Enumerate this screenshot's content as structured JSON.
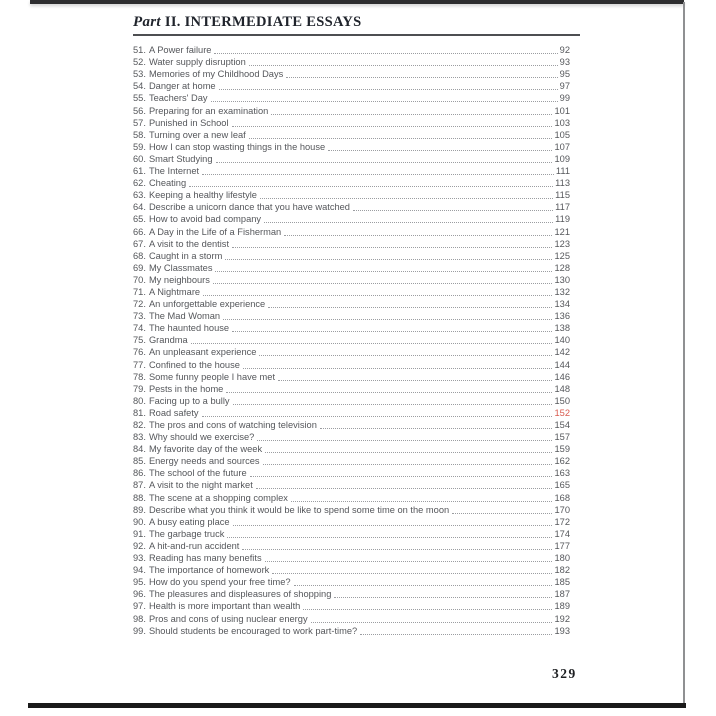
{
  "header": {
    "part_word": "Part",
    "title_rest": "II. INTERMEDIATE ESSAYS"
  },
  "footer": {
    "page_number": "329"
  },
  "colors": {
    "entry_text": "#55575b",
    "highlight_page_red": "#d95b4f",
    "header_text": "#20242c"
  },
  "toc_entries": [
    {
      "n": "51",
      "t": "A Power failure",
      "p": "92"
    },
    {
      "n": "52",
      "t": "Water supply disruption",
      "p": "93"
    },
    {
      "n": "53",
      "t": "Memories of my Childhood Days",
      "p": "95"
    },
    {
      "n": "54",
      "t": "Danger at home",
      "p": "97"
    },
    {
      "n": "55",
      "t": "Teachers' Day",
      "p": "99"
    },
    {
      "n": "56",
      "t": "Preparing for an examination",
      "p": "101"
    },
    {
      "n": "57",
      "t": "Punished in School",
      "p": "103"
    },
    {
      "n": "58",
      "t": "Turning over a new leaf",
      "p": "105"
    },
    {
      "n": "59",
      "t": "How I can stop wasting things in the house",
      "p": "107"
    },
    {
      "n": "60",
      "t": "Smart Studying",
      "p": "109"
    },
    {
      "n": "61",
      "t": "The Internet",
      "p": "111"
    },
    {
      "n": "62",
      "t": "Cheating",
      "p": "113"
    },
    {
      "n": "63",
      "t": "Keeping a healthy lifestyle",
      "p": "115"
    },
    {
      "n": "64",
      "t": "Describe a unicorn dance that you have watched",
      "p": "117"
    },
    {
      "n": "65",
      "t": "How to avoid bad company",
      "p": "119"
    },
    {
      "n": "66",
      "t": "A Day in the Life of a Fisherman",
      "p": "121"
    },
    {
      "n": "67",
      "t": "A visit to the dentist",
      "p": "123"
    },
    {
      "n": "68",
      "t": "Caught in a storm",
      "p": "125"
    },
    {
      "n": "69",
      "t": "My Classmates",
      "p": "128"
    },
    {
      "n": "70",
      "t": "My neighbours",
      "p": "130"
    },
    {
      "n": "71",
      "t": "A Nightmare",
      "p": "132"
    },
    {
      "n": "72",
      "t": "An unforgettable experience",
      "p": "134"
    },
    {
      "n": "73",
      "t": "The Mad Woman",
      "p": "136"
    },
    {
      "n": "74",
      "t": "The haunted house",
      "p": "138"
    },
    {
      "n": "75",
      "t": "Grandma",
      "p": "140"
    },
    {
      "n": "76",
      "t": "An unpleasant experience",
      "p": "142"
    },
    {
      "n": "77",
      "t": "Confined to the house",
      "p": "144"
    },
    {
      "n": "78",
      "t": "Some funny people I have met",
      "p": "146"
    },
    {
      "n": "79",
      "t": "Pests in the home",
      "p": "148"
    },
    {
      "n": "80",
      "t": "Facing up to a bully",
      "p": "150"
    },
    {
      "n": "81",
      "t": "Road safety",
      "p": "152",
      "red": true
    },
    {
      "n": "82",
      "t": "The pros and cons of watching television",
      "p": "154"
    },
    {
      "n": "83",
      "t": "Why should we exercise?",
      "p": "157"
    },
    {
      "n": "84",
      "t": "My favorite day of the week",
      "p": "159"
    },
    {
      "n": "85",
      "t": "Energy needs and sources",
      "p": "162"
    },
    {
      "n": "86",
      "t": "The school of the future",
      "p": "163"
    },
    {
      "n": "87",
      "t": "A visit to the night market",
      "p": "165"
    },
    {
      "n": "88",
      "t": "The scene at a shopping complex",
      "p": "168"
    },
    {
      "n": "89",
      "t": "Describe what you think it would be like to spend some time on the moon",
      "p": "170"
    },
    {
      "n": "90",
      "t": "A busy eating place",
      "p": "172"
    },
    {
      "n": "91",
      "t": "The garbage truck",
      "p": "174"
    },
    {
      "n": "92",
      "t": "A hit-and-run accident",
      "p": "177"
    },
    {
      "n": "93",
      "t": "Reading has many benefits",
      "p": "180"
    },
    {
      "n": "94",
      "t": "The importance of homework",
      "p": "182"
    },
    {
      "n": "95",
      "t": "How do you spend your free time?",
      "p": "185"
    },
    {
      "n": "96",
      "t": "The pleasures and displeasures of shopping",
      "p": "187"
    },
    {
      "n": "97",
      "t": "Health is more important than wealth",
      "p": "189"
    },
    {
      "n": "98",
      "t": "Pros and cons of using nuclear energy",
      "p": "192"
    },
    {
      "n": "99",
      "t": "Should students be encouraged to work part-time?",
      "p": "193"
    }
  ]
}
